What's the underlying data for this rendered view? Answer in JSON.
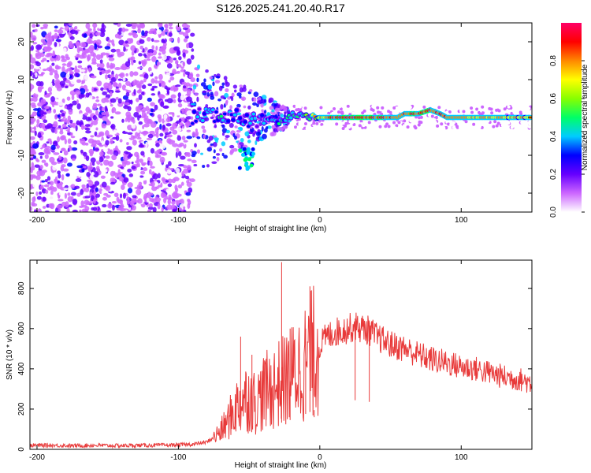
{
  "title": "S126.2025.241.20.40.R17",
  "chart_data": [
    {
      "type": "heatmap",
      "name": "spectrogram",
      "xlabel": "Height of straight line (km)",
      "ylabel": "Frequency (Hz)",
      "xlim": [
        -205,
        150
      ],
      "ylim": [
        -25,
        25
      ],
      "xticks": [
        -200,
        -100,
        0,
        100
      ],
      "yticks": [
        -20,
        -10,
        0,
        10,
        20
      ],
      "colorbar": {
        "label": "Normalized spectral amplitude",
        "range": [
          0,
          1
        ],
        "ticks": [
          "0.0",
          "0.2",
          "0.4",
          "0.6",
          "0.8"
        ],
        "tick_values": [
          0,
          0.2,
          0.4,
          0.6,
          0.8
        ],
        "colors": [
          "#ffffff",
          "#cc66ff",
          "#6600ff",
          "#0000ff",
          "#00ccff",
          "#00ff66",
          "#88ff00",
          "#ffff00",
          "#ff8800",
          "#ff0000",
          "#ff0066"
        ]
      },
      "ridge": [
        [
          -90,
          0,
          0.35
        ],
        [
          -80,
          1,
          0.45
        ],
        [
          -70,
          0,
          0.5
        ],
        [
          -55,
          0,
          0.5
        ],
        [
          -45,
          -1,
          0.4
        ],
        [
          -35,
          -1,
          0.5
        ],
        [
          -25,
          -1,
          0.55
        ],
        [
          -18,
          1,
          0.55
        ],
        [
          -12,
          0,
          0.6
        ],
        [
          -5,
          0,
          0.75
        ],
        [
          5,
          0,
          0.9
        ],
        [
          20,
          0,
          1.0
        ],
        [
          40,
          0,
          0.95
        ],
        [
          55,
          0,
          0.9
        ],
        [
          60,
          1,
          0.9
        ],
        [
          70,
          1,
          0.95
        ],
        [
          78,
          2,
          0.95
        ],
        [
          85,
          1,
          0.9
        ],
        [
          90,
          0,
          0.9
        ],
        [
          110,
          0,
          0.85
        ],
        [
          150,
          0,
          0.8
        ]
      ]
    },
    {
      "type": "line",
      "name": "snr",
      "xlabel": "Height of straight line (km)",
      "ylabel": "SNR (10 * v/v)",
      "xlim": [
        -205,
        150
      ],
      "ylim": [
        0,
        940
      ],
      "xticks": [
        -200,
        -100,
        0,
        100
      ],
      "yticks": [
        0,
        200,
        400,
        600,
        800
      ],
      "color": "#e83a3a",
      "x": [
        -205,
        -190,
        -175,
        -160,
        -145,
        -130,
        -115,
        -100,
        -90,
        -80,
        -75,
        -70,
        -65,
        -60,
        -55,
        -50,
        -45,
        -40,
        -35,
        -30,
        -25,
        -20,
        -15,
        -10,
        -5,
        0,
        5,
        10,
        15,
        20,
        25,
        30,
        35,
        40,
        50,
        60,
        70,
        80,
        90,
        100,
        110,
        120,
        130,
        140,
        150
      ],
      "y": [
        20,
        20,
        18,
        20,
        18,
        20,
        20,
        22,
        25,
        35,
        60,
        90,
        140,
        200,
        250,
        260,
        230,
        280,
        300,
        320,
        340,
        370,
        400,
        440,
        480,
        520,
        560,
        580,
        590,
        600,
        610,
        600,
        590,
        560,
        520,
        500,
        470,
        445,
        430,
        410,
        400,
        380,
        360,
        350,
        330
      ],
      "spikes": [
        [
          -56,
          560
        ],
        [
          -48,
          470
        ],
        [
          -38,
          450
        ],
        [
          -27,
          930
        ],
        [
          -21,
          600
        ],
        [
          -10,
          600
        ],
        [
          -7,
          810
        ],
        [
          -4,
          160
        ],
        [
          25,
          650
        ],
        [
          35,
          640
        ]
      ]
    }
  ]
}
